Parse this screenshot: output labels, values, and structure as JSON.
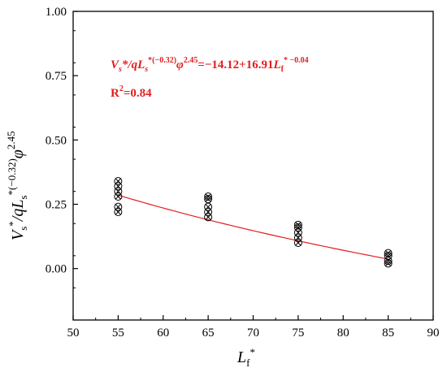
{
  "chart_data": {
    "type": "scatter",
    "title": "",
    "xlabel": "L_f*",
    "ylabel": "V_s*/qL_s*(−0.32)φ^2.45",
    "xlim": [
      50,
      90
    ],
    "ylim": [
      -0.2,
      1.0
    ],
    "xticks": [
      "50",
      "55",
      "60",
      "65",
      "70",
      "75",
      "80",
      "85",
      "90"
    ],
    "yticks": [
      "0.00",
      "0.25",
      "0.50",
      "0.75",
      "1.00"
    ],
    "grid": false,
    "series": [
      {
        "marker": "circle-x",
        "color": "#000000",
        "points": [
          {
            "x": 55,
            "y": 0.22
          },
          {
            "x": 55,
            "y": 0.24
          },
          {
            "x": 55,
            "y": 0.28
          },
          {
            "x": 55,
            "y": 0.3
          },
          {
            "x": 55,
            "y": 0.32
          },
          {
            "x": 55,
            "y": 0.34
          },
          {
            "x": 65,
            "y": 0.2
          },
          {
            "x": 65,
            "y": 0.22
          },
          {
            "x": 65,
            "y": 0.24
          },
          {
            "x": 65,
            "y": 0.27
          },
          {
            "x": 65,
            "y": 0.28
          },
          {
            "x": 75,
            "y": 0.1
          },
          {
            "x": 75,
            "y": 0.12
          },
          {
            "x": 75,
            "y": 0.14
          },
          {
            "x": 75,
            "y": 0.16
          },
          {
            "x": 75,
            "y": 0.17
          },
          {
            "x": 85,
            "y": 0.02
          },
          {
            "x": 85,
            "y": 0.03
          },
          {
            "x": 85,
            "y": 0.05
          },
          {
            "x": 85,
            "y": 0.06
          }
        ]
      }
    ],
    "fit": {
      "color": "#e41e1e",
      "x_range": [
        55,
        85
      ],
      "a": -14.12,
      "b": 16.91,
      "c": -0.04
    },
    "annotations": {
      "equation_pre": "V",
      "equation_sub1": "s",
      "equation_mid1": "*/qL",
      "equation_sub2": "s",
      "equation_sup2": "*(−0.32)",
      "equation_phi": "φ",
      "equation_sup3": "2.45",
      "equation_mid2": "=−14.12+16.91",
      "equation_L": "L",
      "equation_sub3": "f",
      "equation_sup4": "* −0.04",
      "r2_label": "R",
      "r2_sup": "2",
      "r2_value": "=0.84"
    },
    "xlabel_parts": {
      "main": "L",
      "sub": "f",
      "sup": "*"
    },
    "ylabel_parts": {
      "v": "V",
      "sub1": "s",
      "sup1": "*",
      "mid": "/qL",
      "sub2": "s",
      "sup2": "*(−0.32)",
      "phi": "φ",
      "sup3": "2.45"
    }
  }
}
